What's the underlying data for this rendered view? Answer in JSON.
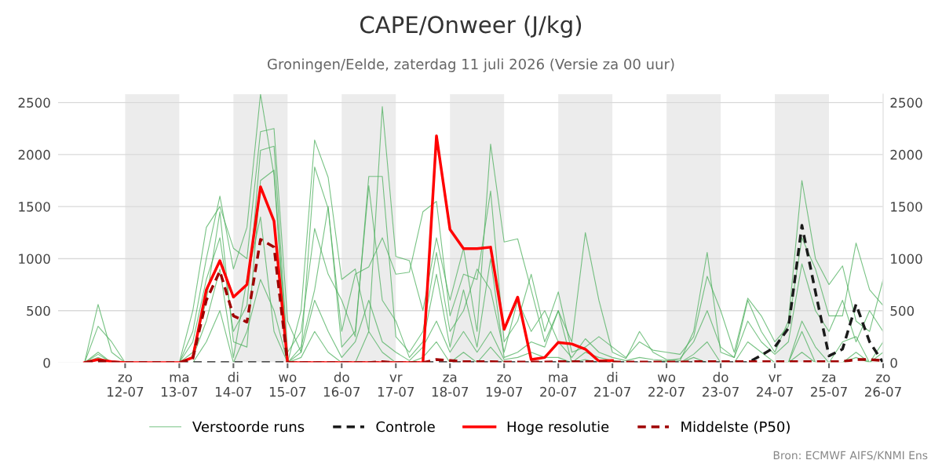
{
  "chart_data": {
    "type": "line",
    "title": "CAPE/Onweer (J/kg)",
    "subtitle": "Groningen/Eelde, zaterdag 11 juli 2026 (Versie za 00 uur)",
    "x": [
      "2026-07-11T06:00",
      "2026-07-11T12:00",
      "2026-07-11T18:00",
      "2026-07-12T00:00",
      "2026-07-12T06:00",
      "2026-07-12T12:00",
      "2026-07-12T18:00",
      "2026-07-13T00:00",
      "2026-07-13T06:00",
      "2026-07-13T12:00",
      "2026-07-13T18:00",
      "2026-07-14T00:00",
      "2026-07-14T06:00",
      "2026-07-14T12:00",
      "2026-07-14T18:00",
      "2026-07-15T00:00",
      "2026-07-15T06:00",
      "2026-07-15T12:00",
      "2026-07-15T18:00",
      "2026-07-16T00:00",
      "2026-07-16T06:00",
      "2026-07-16T12:00",
      "2026-07-16T18:00",
      "2026-07-17T00:00",
      "2026-07-17T06:00",
      "2026-07-17T12:00",
      "2026-07-17T18:00",
      "2026-07-18T00:00",
      "2026-07-18T06:00",
      "2026-07-18T12:00",
      "2026-07-18T18:00",
      "2026-07-19T00:00",
      "2026-07-19T06:00",
      "2026-07-19T12:00",
      "2026-07-19T18:00",
      "2026-07-20T00:00",
      "2026-07-20T06:00",
      "2026-07-20T12:00",
      "2026-07-20T18:00",
      "2026-07-21T00:00",
      "2026-07-21T06:00",
      "2026-07-21T12:00",
      "2026-07-21T18:00",
      "2026-07-22T00:00",
      "2026-07-22T06:00",
      "2026-07-22T12:00",
      "2026-07-22T18:00",
      "2026-07-23T00:00",
      "2026-07-23T06:00",
      "2026-07-23T12:00",
      "2026-07-23T18:00",
      "2026-07-24T00:00",
      "2026-07-24T06:00",
      "2026-07-24T12:00",
      "2026-07-24T18:00",
      "2026-07-25T00:00",
      "2026-07-25T06:00",
      "2026-07-25T12:00",
      "2026-07-25T18:00",
      "2026-07-26T00:00"
    ],
    "series": [
      {
        "name": "Verstoorde runs",
        "color": "#4caf5c",
        "values": [
          0,
          560,
          100,
          0,
          0,
          0,
          0,
          0,
          300,
          1000,
          1600,
          900,
          1300,
          2580,
          1800,
          0,
          500,
          2140,
          1780,
          800,
          900,
          300,
          2460,
          1020,
          980,
          500,
          1200,
          600,
          1100,
          300,
          2100,
          1160,
          1190,
          700,
          200,
          500,
          200,
          1250,
          600,
          100,
          40,
          300,
          100,
          30,
          20,
          300,
          1060,
          100,
          50,
          600,
          300,
          100,
          400,
          1750,
          1000,
          750,
          930,
          400,
          300,
          800
        ]
      },
      {
        "color": "#4caf5c",
        "values": [
          0,
          350,
          200,
          0,
          0,
          0,
          0,
          0,
          500,
          1300,
          1500,
          1100,
          1000,
          2220,
          2250,
          400,
          100,
          1880,
          1480,
          300,
          850,
          920,
          1200,
          850,
          870,
          1450,
          1550,
          450,
          850,
          800,
          1650,
          200,
          400,
          850,
          300,
          680,
          100,
          150,
          250,
          150,
          50,
          200,
          120,
          100,
          80,
          250,
          830,
          500,
          100,
          620,
          450,
          200,
          350,
          1200,
          900,
          450,
          450,
          1150,
          700,
          550
        ]
      },
      {
        "color": "#4caf5c",
        "values": [
          0,
          100,
          0,
          0,
          0,
          0,
          0,
          0,
          200,
          800,
          1200,
          300,
          550,
          2040,
          2080,
          100,
          300,
          1290,
          850,
          600,
          250,
          1790,
          1790,
          250,
          100,
          300,
          1060,
          300,
          500,
          900,
          700,
          100,
          600,
          300,
          500,
          200,
          50,
          230,
          100,
          50,
          20,
          50,
          30,
          20,
          40,
          200,
          500,
          150,
          50,
          400,
          200,
          80,
          200,
          950,
          500,
          300,
          600,
          200,
          500,
          300
        ]
      },
      {
        "color": "#4caf5c",
        "values": [
          0,
          50,
          0,
          0,
          0,
          0,
          0,
          0,
          100,
          600,
          1450,
          200,
          150,
          1750,
          1850,
          0,
          150,
          700,
          1500,
          150,
          300,
          1700,
          600,
          400,
          50,
          200,
          850,
          150,
          700,
          150,
          1000,
          50,
          100,
          200,
          150,
          500,
          0,
          100,
          50,
          20,
          0,
          0,
          0,
          10,
          0,
          80,
          200,
          0,
          0,
          200,
          100,
          0,
          0,
          400,
          150,
          0,
          200,
          250,
          0,
          200
        ]
      },
      {
        "color": "#4caf5c",
        "values": [
          0,
          80,
          0,
          0,
          0,
          0,
          0,
          0,
          50,
          400,
          900,
          50,
          800,
          1400,
          300,
          0,
          100,
          600,
          300,
          50,
          200,
          600,
          200,
          100,
          20,
          150,
          400,
          100,
          300,
          100,
          300,
          30,
          50,
          100,
          50,
          50,
          0,
          0,
          0,
          0,
          0,
          0,
          0,
          0,
          0,
          0,
          0,
          0,
          0,
          0,
          0,
          0,
          0,
          300,
          0,
          0,
          0,
          100,
          0,
          100
        ]
      },
      {
        "color": "#4caf5c",
        "values": [
          null,
          null,
          null,
          null,
          null,
          null,
          null,
          null,
          0,
          200,
          500,
          0,
          300,
          800,
          500,
          0,
          50,
          300,
          100,
          0,
          0,
          300,
          100,
          0,
          0,
          50,
          200,
          0,
          100,
          0,
          150,
          0,
          0,
          0,
          0,
          0,
          0,
          30,
          0,
          0,
          0,
          0,
          0,
          0,
          0,
          50,
          0,
          0,
          0,
          0,
          0,
          0,
          0,
          100,
          0,
          0,
          0,
          50,
          0,
          0
        ]
      },
      {
        "name": "Controle",
        "color": "#1a1a1a",
        "line_style": "dashed",
        "values": [
          0,
          0,
          0,
          0,
          0,
          0,
          0,
          0,
          0,
          0,
          0,
          0,
          0,
          0,
          0,
          0,
          0,
          0,
          0,
          0,
          0,
          0,
          0,
          0,
          0,
          0,
          0,
          0,
          0,
          0,
          0,
          0,
          0,
          0,
          0,
          0,
          0,
          0,
          0,
          0,
          0,
          0,
          0,
          0,
          0,
          0,
          0,
          0,
          0,
          0,
          70,
          150,
          330,
          1320,
          680,
          65,
          130,
          560,
          200,
          0
        ]
      },
      {
        "name": "Hoge resolutie",
        "color": "#ff0000",
        "x": [
          "2026-07-11T06:00",
          "2026-07-11T12:00",
          "2026-07-11T18:00",
          "2026-07-12T00:00",
          "2026-07-12T06:00",
          "2026-07-12T12:00",
          "2026-07-12T18:00",
          "2026-07-13T00:00",
          "2026-07-13T06:00",
          "2026-07-13T12:00",
          "2026-07-13T18:00",
          "2026-07-14T00:00",
          "2026-07-14T06:00",
          "2026-07-14T12:00",
          "2026-07-14T18:00",
          "2026-07-15T00:00",
          "2026-07-15T06:00",
          "2026-07-15T12:00",
          "2026-07-15T18:00",
          "2026-07-16T00:00",
          "2026-07-16T06:00",
          "2026-07-16T12:00",
          "2026-07-16T18:00",
          "2026-07-17T00:00",
          "2026-07-17T06:00",
          "2026-07-17T12:00",
          "2026-07-17T18:00",
          "2026-07-18T00:00",
          "2026-07-18T06:00",
          "2026-07-18T12:00",
          "2026-07-18T18:00",
          "2026-07-19T00:00",
          "2026-07-19T06:00",
          "2026-07-19T12:00",
          "2026-07-19T18:00",
          "2026-07-20T00:00",
          "2026-07-20T06:00",
          "2026-07-20T12:00",
          "2026-07-20T18:00",
          "2026-07-21T00:00"
        ],
        "values": [
          0,
          30,
          10,
          0,
          0,
          0,
          0,
          0,
          50,
          700,
          980,
          630,
          750,
          1690,
          1360,
          0,
          0,
          0,
          0,
          0,
          0,
          0,
          0,
          0,
          0,
          0,
          2180,
          1280,
          1095,
          1095,
          1110,
          320,
          630,
          30,
          50,
          195,
          180,
          130,
          15,
          20
        ]
      },
      {
        "name": "Middelste (P50)",
        "color": "#a00000",
        "line_style": "dashed",
        "values": [
          0,
          20,
          5,
          0,
          0,
          0,
          0,
          0,
          40,
          600,
          880,
          450,
          390,
          1185,
          1110,
          0,
          0,
          0,
          0,
          0,
          0,
          0,
          10,
          0,
          0,
          0,
          30,
          20,
          10,
          10,
          10,
          5,
          5,
          5,
          5,
          10,
          10,
          10,
          10,
          5,
          5,
          5,
          5,
          5,
          5,
          10,
          10,
          10,
          10,
          10,
          10,
          10,
          10,
          10,
          10,
          10,
          10,
          30,
          30,
          20
        ]
      }
    ],
    "xlim": [
      "2026-07-10T18:00",
      "2026-07-26T00:00"
    ],
    "xticks": [
      {
        "value": "2026-07-12",
        "label": "zo\n12-07"
      },
      {
        "value": "2026-07-13",
        "label": "ma\n13-07"
      },
      {
        "value": "2026-07-14",
        "label": "di\n14-07"
      },
      {
        "value": "2026-07-15",
        "label": "wo\n15-07"
      },
      {
        "value": "2026-07-16",
        "label": "do\n16-07"
      },
      {
        "value": "2026-07-17",
        "label": "vr\n17-07"
      },
      {
        "value": "2026-07-18",
        "label": "za\n18-07"
      },
      {
        "value": "2026-07-19",
        "label": "zo\n19-07"
      },
      {
        "value": "2026-07-20",
        "label": "ma\n20-07"
      },
      {
        "value": "2026-07-21",
        "label": "di\n21-07"
      },
      {
        "value": "2026-07-22",
        "label": "wo\n22-07"
      },
      {
        "value": "2026-07-23",
        "label": "do\n23-07"
      },
      {
        "value": "2026-07-24",
        "label": "vr\n24-07"
      },
      {
        "value": "2026-07-25",
        "label": "za\n25-07"
      },
      {
        "value": "2026-07-26",
        "label": "zo\n26-07"
      }
    ],
    "ylim": [
      0,
      2580
    ],
    "yticks": [
      0,
      500,
      1000,
      1500,
      2000,
      2500
    ],
    "y2lim": [
      0,
      2580
    ],
    "y2ticks": [
      0,
      500,
      1000,
      1500,
      2000,
      2500
    ],
    "bands": [
      {
        "axis": "x",
        "from": "2026-07-12",
        "to": "2026-07-13",
        "color": "#ececec"
      },
      {
        "axis": "x",
        "from": "2026-07-14",
        "to": "2026-07-15",
        "color": "#ececec"
      },
      {
        "axis": "x",
        "from": "2026-07-16",
        "to": "2026-07-17",
        "color": "#ececec"
      },
      {
        "axis": "x",
        "from": "2026-07-18",
        "to": "2026-07-19",
        "color": "#ececec"
      },
      {
        "axis": "x",
        "from": "2026-07-20",
        "to": "2026-07-21",
        "color": "#ececec"
      },
      {
        "axis": "x",
        "from": "2026-07-22",
        "to": "2026-07-23",
        "color": "#ececec"
      },
      {
        "axis": "x",
        "from": "2026-07-24",
        "to": "2026-07-25",
        "color": "#ececec"
      }
    ],
    "grid": "y",
    "legend": "bottom",
    "marker": "none",
    "annotations": [
      "Bron: ECMWF AIFS/KNMI Ens"
    ]
  }
}
